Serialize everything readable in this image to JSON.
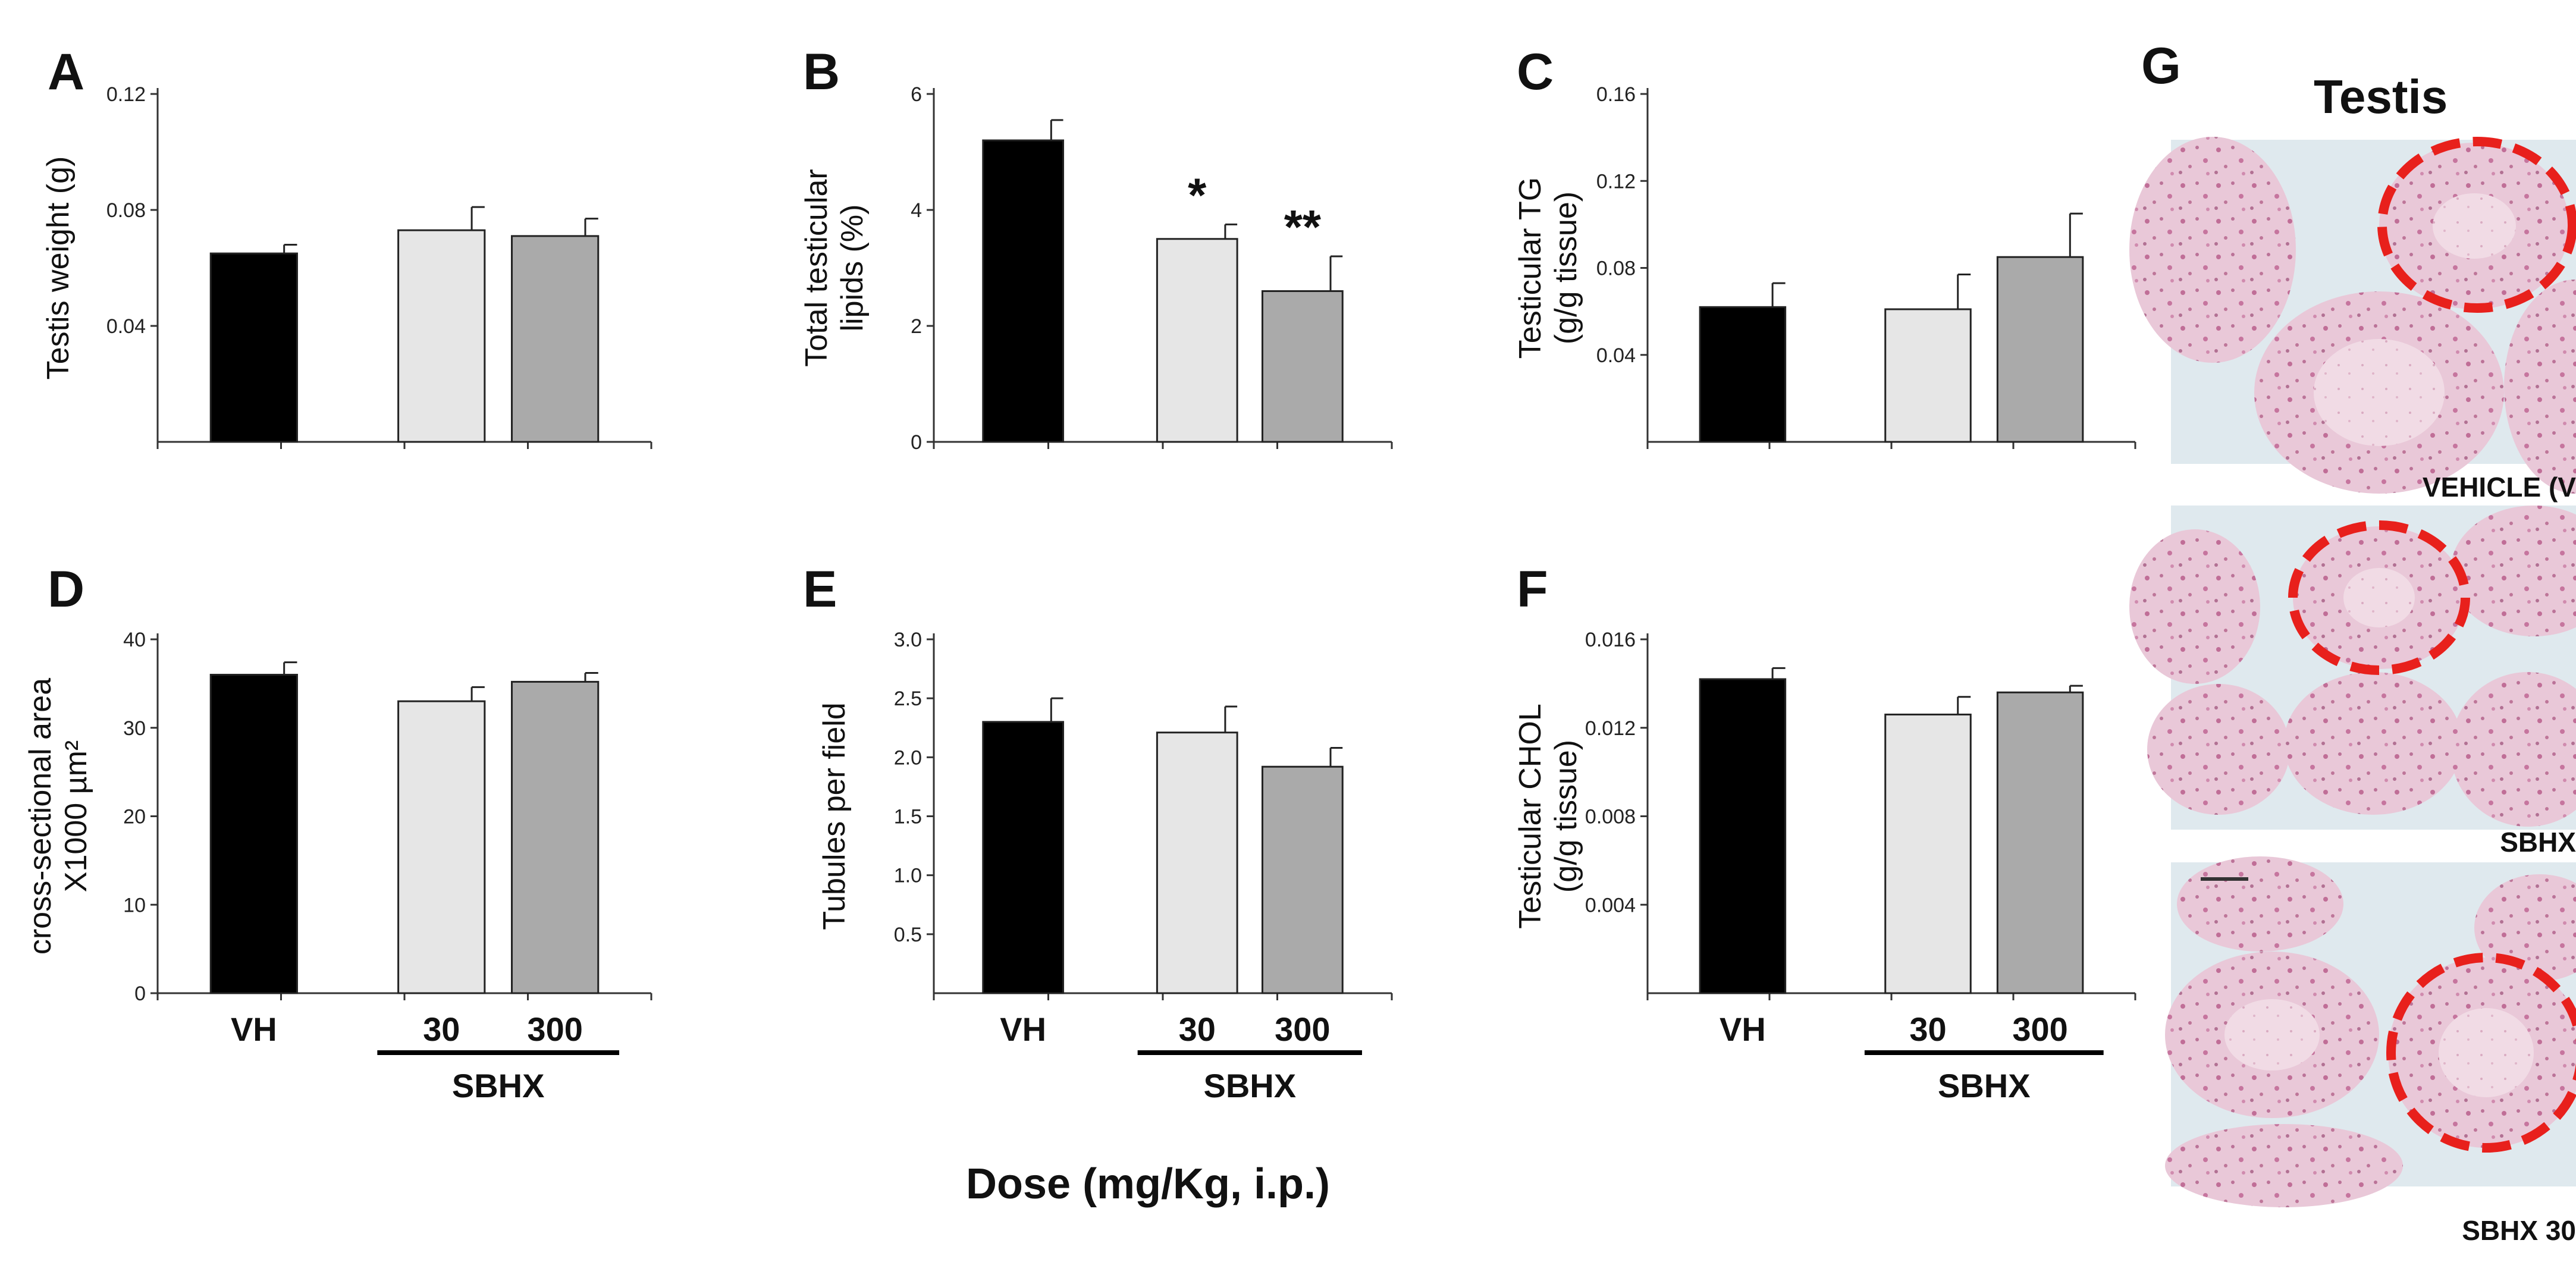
{
  "figure": {
    "x_axis_title": "Dose (mg/Kg, i.p.)"
  },
  "colors": {
    "vh": "#000000",
    "d30": "#e6e6e6",
    "d300": "#aaaaaa",
    "circle": "#e8201c"
  },
  "chart_data": [
    {
      "panel": "A",
      "type": "bar",
      "categories": [
        "VH",
        "30",
        "300"
      ],
      "group_label": "SBHX",
      "values": [
        0.065,
        0.073,
        0.071
      ],
      "errors": [
        0.003,
        0.008,
        0.006
      ],
      "ylabel_lines": [
        "Testis weight (g)"
      ],
      "ylim": [
        0.0,
        0.12
      ],
      "yticks": [
        0.04,
        0.08,
        0.12
      ],
      "ytick_labels": [
        "0.04",
        "0.08",
        "0.12"
      ],
      "significance": [
        "",
        "",
        ""
      ],
      "show_xlabels": false
    },
    {
      "panel": "B",
      "type": "bar",
      "categories": [
        "VH",
        "30",
        "300"
      ],
      "group_label": "SBHX",
      "values": [
        5.2,
        3.5,
        2.6
      ],
      "errors": [
        0.35,
        0.25,
        0.6
      ],
      "ylabel_lines": [
        "Total testicular",
        "lipids (%)"
      ],
      "ylim": [
        0,
        6
      ],
      "yticks": [
        0,
        2,
        4,
        6
      ],
      "ytick_labels": [
        "0",
        "2",
        "4",
        "6"
      ],
      "significance": [
        "",
        "*",
        "**"
      ],
      "show_xlabels": false
    },
    {
      "panel": "C",
      "type": "bar",
      "categories": [
        "VH",
        "30",
        "300"
      ],
      "group_label": "SBHX",
      "values": [
        0.062,
        0.061,
        0.085
      ],
      "errors": [
        0.011,
        0.016,
        0.02
      ],
      "ylabel_lines": [
        "Testicular TG",
        "(g/g tissue)"
      ],
      "ylim": [
        0.0,
        0.16
      ],
      "yticks": [
        0.04,
        0.08,
        0.12,
        0.16
      ],
      "ytick_labels": [
        "0.04",
        "0.08",
        "0.12",
        "0.16"
      ],
      "significance": [
        "",
        "",
        ""
      ],
      "show_xlabels": false
    },
    {
      "panel": "D",
      "type": "bar",
      "categories": [
        "VH",
        "30",
        "300"
      ],
      "group_label": "SBHX",
      "values": [
        36,
        33,
        35.2
      ],
      "errors": [
        1.4,
        1.6,
        1.0
      ],
      "ylabel_lines": [
        "cross-sectional area",
        "X1000 µm²"
      ],
      "ylim": [
        0,
        40
      ],
      "yticks": [
        0,
        10,
        20,
        30,
        40
      ],
      "ytick_labels": [
        "0",
        "10",
        "20",
        "30",
        "40"
      ],
      "significance": [
        "",
        "",
        ""
      ],
      "show_xlabels": true
    },
    {
      "panel": "E",
      "type": "bar",
      "categories": [
        "VH",
        "30",
        "300"
      ],
      "group_label": "SBHX",
      "values": [
        2.3,
        2.21,
        1.92
      ],
      "errors": [
        0.2,
        0.22,
        0.16
      ],
      "ylabel_lines": [
        "Tubules per field"
      ],
      "ylim": [
        0,
        3.0
      ],
      "yticks": [
        0.5,
        1.0,
        1.5,
        2.0,
        2.5,
        3.0
      ],
      "ytick_labels": [
        "0.5",
        "1.0",
        "1.5",
        "2.0",
        "2.5",
        "3.0"
      ],
      "significance": [
        "",
        "",
        ""
      ],
      "show_xlabels": true
    },
    {
      "panel": "F",
      "type": "bar",
      "categories": [
        "VH",
        "30",
        "300"
      ],
      "group_label": "SBHX",
      "values": [
        0.0142,
        0.0126,
        0.0136
      ],
      "errors": [
        0.0005,
        0.0008,
        0.0003
      ],
      "ylabel_lines": [
        "Testicular CHOL",
        "(g/g tissue)"
      ],
      "ylim": [
        0.0,
        0.016
      ],
      "yticks": [
        0.004,
        0.008,
        0.012,
        0.016
      ],
      "ytick_labels": [
        "0.004",
        "0.008",
        "0.012",
        "0.016"
      ],
      "significance": [
        "",
        "",
        ""
      ],
      "show_xlabels": true
    }
  ],
  "histology": {
    "panel": "G",
    "title": "Testis",
    "captions": [
      "VEHICLE (V",
      "SBHX",
      "SBHX 30"
    ]
  }
}
